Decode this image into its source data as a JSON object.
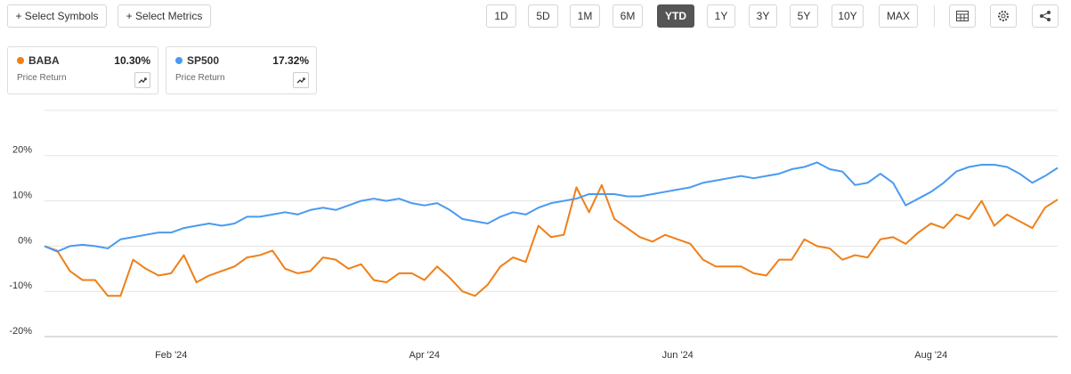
{
  "toolbar": {
    "buttons": [
      "+ Select Symbols",
      "+ Select Metrics"
    ],
    "ranges": [
      "1D",
      "5D",
      "1M",
      "6M",
      "YTD",
      "1Y",
      "3Y",
      "5Y",
      "10Y",
      "MAX"
    ],
    "active_range": "YTD"
  },
  "chart_data": {
    "type": "line",
    "categories": [
      null,
      null,
      null,
      null,
      null,
      null,
      null,
      null,
      null,
      null,
      "Feb '24",
      null,
      null,
      null,
      null,
      null,
      null,
      null,
      null,
      null,
      null,
      null,
      null,
      null,
      null,
      null,
      null,
      null,
      null,
      null,
      "Apr '24",
      null,
      null,
      null,
      null,
      null,
      null,
      null,
      null,
      null,
      null,
      null,
      null,
      null,
      null,
      null,
      null,
      null,
      null,
      null,
      "Jun '24",
      null,
      null,
      null,
      null,
      null,
      null,
      null,
      null,
      null,
      null,
      null,
      null,
      null,
      null,
      null,
      null,
      null,
      null,
      null,
      "Aug '24",
      null,
      null,
      null,
      null,
      null,
      null,
      null,
      null,
      null,
      null
    ],
    "series": [
      {
        "name": "BABA",
        "color": "#f07f17",
        "return": "10.30%",
        "metric": "Price Return",
        "values": [
          0,
          -1,
          -5.5,
          -7.5,
          -7.5,
          -11,
          -11,
          -3,
          -5,
          -6.5,
          -6,
          -2,
          -8,
          -6.5,
          -5.5,
          -4.5,
          -2.5,
          -2,
          -1,
          -5,
          -6,
          -5.5,
          -2.5,
          -3,
          -5,
          -4,
          -7.5,
          -8,
          -6,
          -6,
          -7.5,
          -4.5,
          -7,
          -10,
          -11,
          -8.5,
          -4.5,
          -2.5,
          -3.5,
          4.5,
          2,
          2.5,
          13,
          7.5,
          13.5,
          6,
          4,
          2,
          1,
          2.5,
          1.5,
          0.5,
          -3,
          -4.5,
          -4.5,
          -4.5,
          -6,
          -6.5,
          -3,
          -3,
          1.5,
          0,
          -0.5,
          -3,
          -2,
          -2.5,
          1.5,
          2,
          0.5,
          3,
          5,
          4,
          7,
          6,
          10,
          4.5,
          7,
          5.5,
          4,
          8.5,
          10.3
        ]
      },
      {
        "name": "SP500",
        "color": "#4a9af0",
        "return": "17.32%",
        "metric": "Price Return",
        "values": [
          0,
          -1.2,
          0,
          0.3,
          0,
          -0.5,
          1.5,
          2,
          2.5,
          3,
          3,
          4,
          4.5,
          5,
          4.5,
          5,
          6.5,
          6.5,
          7,
          7.5,
          7,
          8,
          8.5,
          8,
          9,
          10,
          10.5,
          10,
          10.5,
          9.5,
          9,
          9.5,
          8,
          6,
          5.5,
          5,
          6.5,
          7.5,
          7,
          8.5,
          9.5,
          10,
          10.5,
          11.5,
          11.5,
          11.5,
          11,
          11,
          11.5,
          12,
          12.5,
          13,
          14,
          14.5,
          15,
          15.5,
          15,
          15.5,
          16,
          17,
          17.5,
          18.5,
          17,
          16.5,
          13.5,
          14,
          16,
          14,
          9,
          10.5,
          12,
          14,
          16.5,
          17.5,
          18,
          18,
          17.5,
          16,
          14,
          15.5,
          17.3
        ]
      }
    ],
    "ylim": [
      -20,
      30
    ],
    "yticks": [
      {
        "value": -20,
        "label": "-20%"
      },
      {
        "value": -10,
        "label": "-10%"
      },
      {
        "value": 0,
        "label": "0%"
      },
      {
        "value": 10,
        "label": "10%"
      },
      {
        "value": 20,
        "label": "20%"
      }
    ],
    "grid": true
  }
}
